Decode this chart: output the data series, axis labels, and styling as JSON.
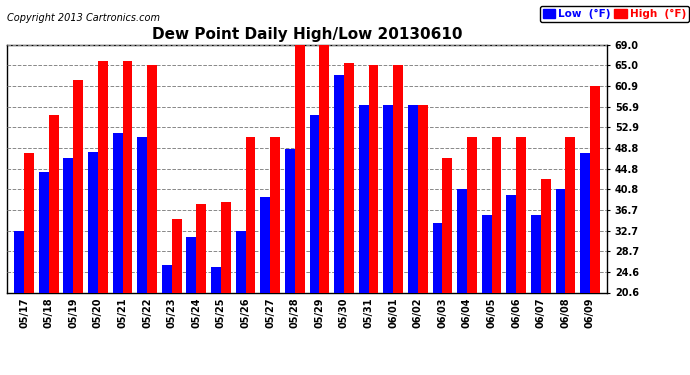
{
  "title": "Dew Point Daily High/Low 20130610",
  "copyright": "Copyright 2013 Cartronics.com",
  "dates": [
    "05/17",
    "05/18",
    "05/19",
    "05/20",
    "05/21",
    "05/22",
    "05/23",
    "05/24",
    "05/25",
    "05/26",
    "05/27",
    "05/28",
    "05/29",
    "05/30",
    "05/31",
    "06/01",
    "06/02",
    "06/03",
    "06/04",
    "06/05",
    "06/06",
    "06/07",
    "06/08",
    "06/09"
  ],
  "low_values": [
    32.7,
    44.1,
    46.9,
    48.1,
    51.8,
    51.1,
    25.9,
    31.5,
    25.5,
    32.7,
    39.2,
    48.6,
    55.4,
    63.1,
    57.2,
    57.2,
    57.2,
    34.2,
    40.9,
    35.8,
    39.6,
    35.8,
    40.8,
    47.8
  ],
  "high_values": [
    47.8,
    55.4,
    62.1,
    65.8,
    65.8,
    65.1,
    34.9,
    37.9,
    38.3,
    51.1,
    51.1,
    69.0,
    69.0,
    65.5,
    65.1,
    65.1,
    57.2,
    46.9,
    51.1,
    51.1,
    51.1,
    42.8,
    51.1,
    60.9
  ],
  "low_color": "#0000ff",
  "high_color": "#ff0000",
  "bg_color": "#ffffff",
  "grid_color": "#888888",
  "yticks": [
    20.6,
    24.6,
    28.7,
    32.7,
    36.7,
    40.8,
    44.8,
    48.8,
    52.9,
    56.9,
    60.9,
    65.0,
    69.0
  ],
  "ylim_min": 20.6,
  "ylim_max": 69.0,
  "bar_width": 0.4,
  "title_fontsize": 11,
  "tick_fontsize": 7,
  "copyright_fontsize": 7
}
